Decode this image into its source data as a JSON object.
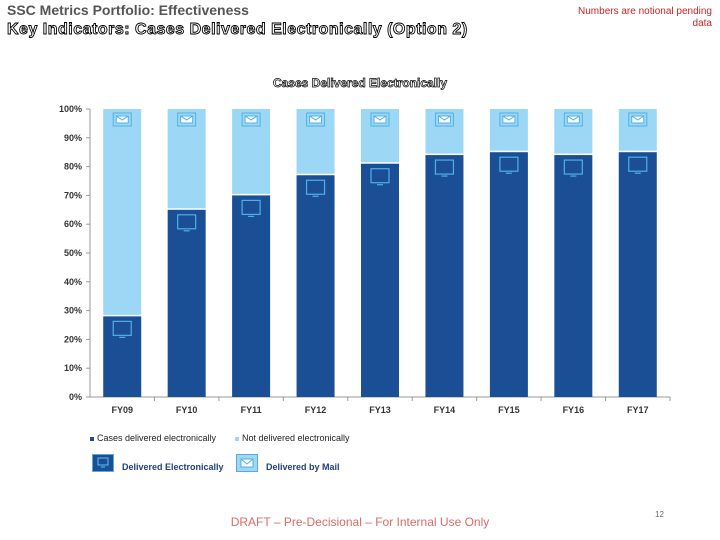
{
  "header": {
    "portfolio_title": "SSC Metrics Portfolio: Effectiveness",
    "slide_title": "Key Indicators: Cases Delivered Electronically (Option 2)",
    "note": "Numbers are notional pending data"
  },
  "legend_icons": {
    "electronic_label": "Delivered Electronically",
    "mail_label": "Delivered by Mail"
  },
  "footer": {
    "page_number": "12",
    "disclaimer": "DRAFT – Pre-Decisional – For Internal Use Only"
  },
  "colors": {
    "electronic": "#1b4f95",
    "mail": "#9cd8f5",
    "icon_stroke": "#4fb0e6"
  },
  "chart_data": {
    "type": "bar",
    "stacked": true,
    "title": "Cases Delivered Electronically",
    "categories": [
      "FY09",
      "FY10",
      "FY11",
      "FY12",
      "FY13",
      "FY14",
      "FY15",
      "FY16",
      "FY17"
    ],
    "series": [
      {
        "name": "Cases delivered electronically",
        "values": [
          28,
          65,
          70,
          77,
          81,
          84,
          85,
          84,
          85
        ]
      },
      {
        "name": "Not delivered electronically",
        "values": [
          72,
          35,
          30,
          23,
          19,
          16,
          15,
          16,
          15
        ]
      }
    ],
    "ylim": [
      0,
      100
    ],
    "yticks": [
      "0%",
      "10%",
      "20%",
      "30%",
      "40%",
      "50%",
      "60%",
      "70%",
      "80%",
      "90%",
      "100%"
    ],
    "grid": false,
    "legend_position": "bottom-left"
  }
}
